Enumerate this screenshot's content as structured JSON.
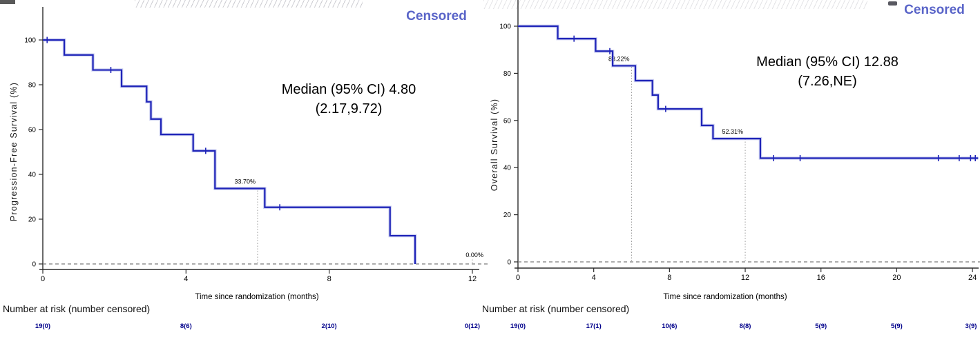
{
  "colors": {
    "curve": "#1f24b8",
    "curve_halo": "#aab0e8",
    "censored_text": "#5964c8",
    "risk_values": "#00008b",
    "annotation_text": "#000000",
    "axis": "#2b2b2b",
    "zero_line": "#7a7a7a",
    "landmark_line": "#9a9a9a"
  },
  "chart_data": [
    {
      "type": "line",
      "subtype": "kaplan-meier-step",
      "ylabel": "Progression-Free Survival (%)",
      "xlabel": "Time since randomization (months)",
      "censored_legend": "Censored",
      "median_label": "Median (95% CI) 4.80",
      "median_ci": "(2.17,9.72)",
      "xlim": [
        0,
        12.3
      ],
      "ylim": [
        0,
        100
      ],
      "xticks": [
        0,
        4,
        8,
        12
      ],
      "yticks": [
        0,
        20,
        40,
        60,
        80,
        100
      ],
      "grid": false,
      "zero_line_dashed": true,
      "steps": [
        [
          0,
          100
        ],
        [
          0.6,
          93.3
        ],
        [
          1.4,
          86.6
        ],
        [
          2.2,
          79.3
        ],
        [
          2.9,
          72.4
        ],
        [
          3.02,
          64.7
        ],
        [
          3.3,
          57.8
        ],
        [
          4.2,
          50.5
        ],
        [
          4.81,
          33.7
        ],
        [
          6.2,
          25.3
        ],
        [
          9.7,
          12.6
        ],
        [
          10.4,
          0
        ]
      ],
      "x_end": 10.4,
      "censor_marks": [
        [
          0.12,
          100
        ],
        [
          1.9,
          86.6
        ],
        [
          4.55,
          50.5
        ],
        [
          6.62,
          25.3
        ]
      ],
      "landmarks": [
        {
          "x": 6,
          "y": 33.7,
          "label": "33.70%"
        },
        {
          "x": 12,
          "y": 0,
          "label": "0.00%"
        }
      ],
      "risk_table": {
        "header": "Number at risk (number censored)",
        "times": [
          0,
          4,
          8,
          12
        ],
        "values": [
          "19(0)",
          "8(6)",
          "2(10)",
          "0(12)"
        ]
      }
    },
    {
      "type": "line",
      "subtype": "kaplan-meier-step",
      "ylabel": "Overall Survival (%)",
      "xlabel": "Time since randomization (months)",
      "censored_legend": "Censored",
      "median_label": "Median (95% CI) 12.88",
      "median_ci": "(7.26,NE)",
      "xlim": [
        0,
        24.4
      ],
      "ylim": [
        0,
        100
      ],
      "xticks": [
        0,
        4,
        8,
        12,
        16,
        20,
        24
      ],
      "yticks": [
        0,
        20,
        40,
        60,
        80,
        100
      ],
      "grid": false,
      "zero_line_dashed": true,
      "steps": [
        [
          0,
          100
        ],
        [
          2.1,
          94.7
        ],
        [
          4.1,
          89.4
        ],
        [
          5.0,
          83.2
        ],
        [
          6.2,
          76.9
        ],
        [
          7.1,
          70.8
        ],
        [
          7.4,
          64.9
        ],
        [
          9.7,
          57.9
        ],
        [
          10.3,
          52.3
        ],
        [
          12.8,
          44.0
        ]
      ],
      "x_end": 24.3,
      "censor_marks": [
        [
          2.96,
          94.7
        ],
        [
          4.85,
          89.4
        ],
        [
          7.8,
          64.9
        ],
        [
          13.5,
          44.0
        ],
        [
          14.9,
          44.0
        ],
        [
          22.2,
          44.0
        ],
        [
          23.3,
          44.0
        ],
        [
          23.9,
          44.0
        ],
        [
          24.15,
          44.0
        ]
      ],
      "landmarks": [
        {
          "x": 6,
          "y": 83.2,
          "label": "83.22%"
        },
        {
          "x": 12,
          "y": 52.3,
          "label": "52.31%"
        }
      ],
      "risk_table": {
        "header": "Number at risk (number censored)",
        "times": [
          0,
          4,
          8,
          12,
          16,
          20,
          24
        ],
        "values": [
          "19(0)",
          "17(1)",
          "10(6)",
          "8(8)",
          "5(9)",
          "5(9)",
          "3(9)"
        ]
      }
    }
  ]
}
